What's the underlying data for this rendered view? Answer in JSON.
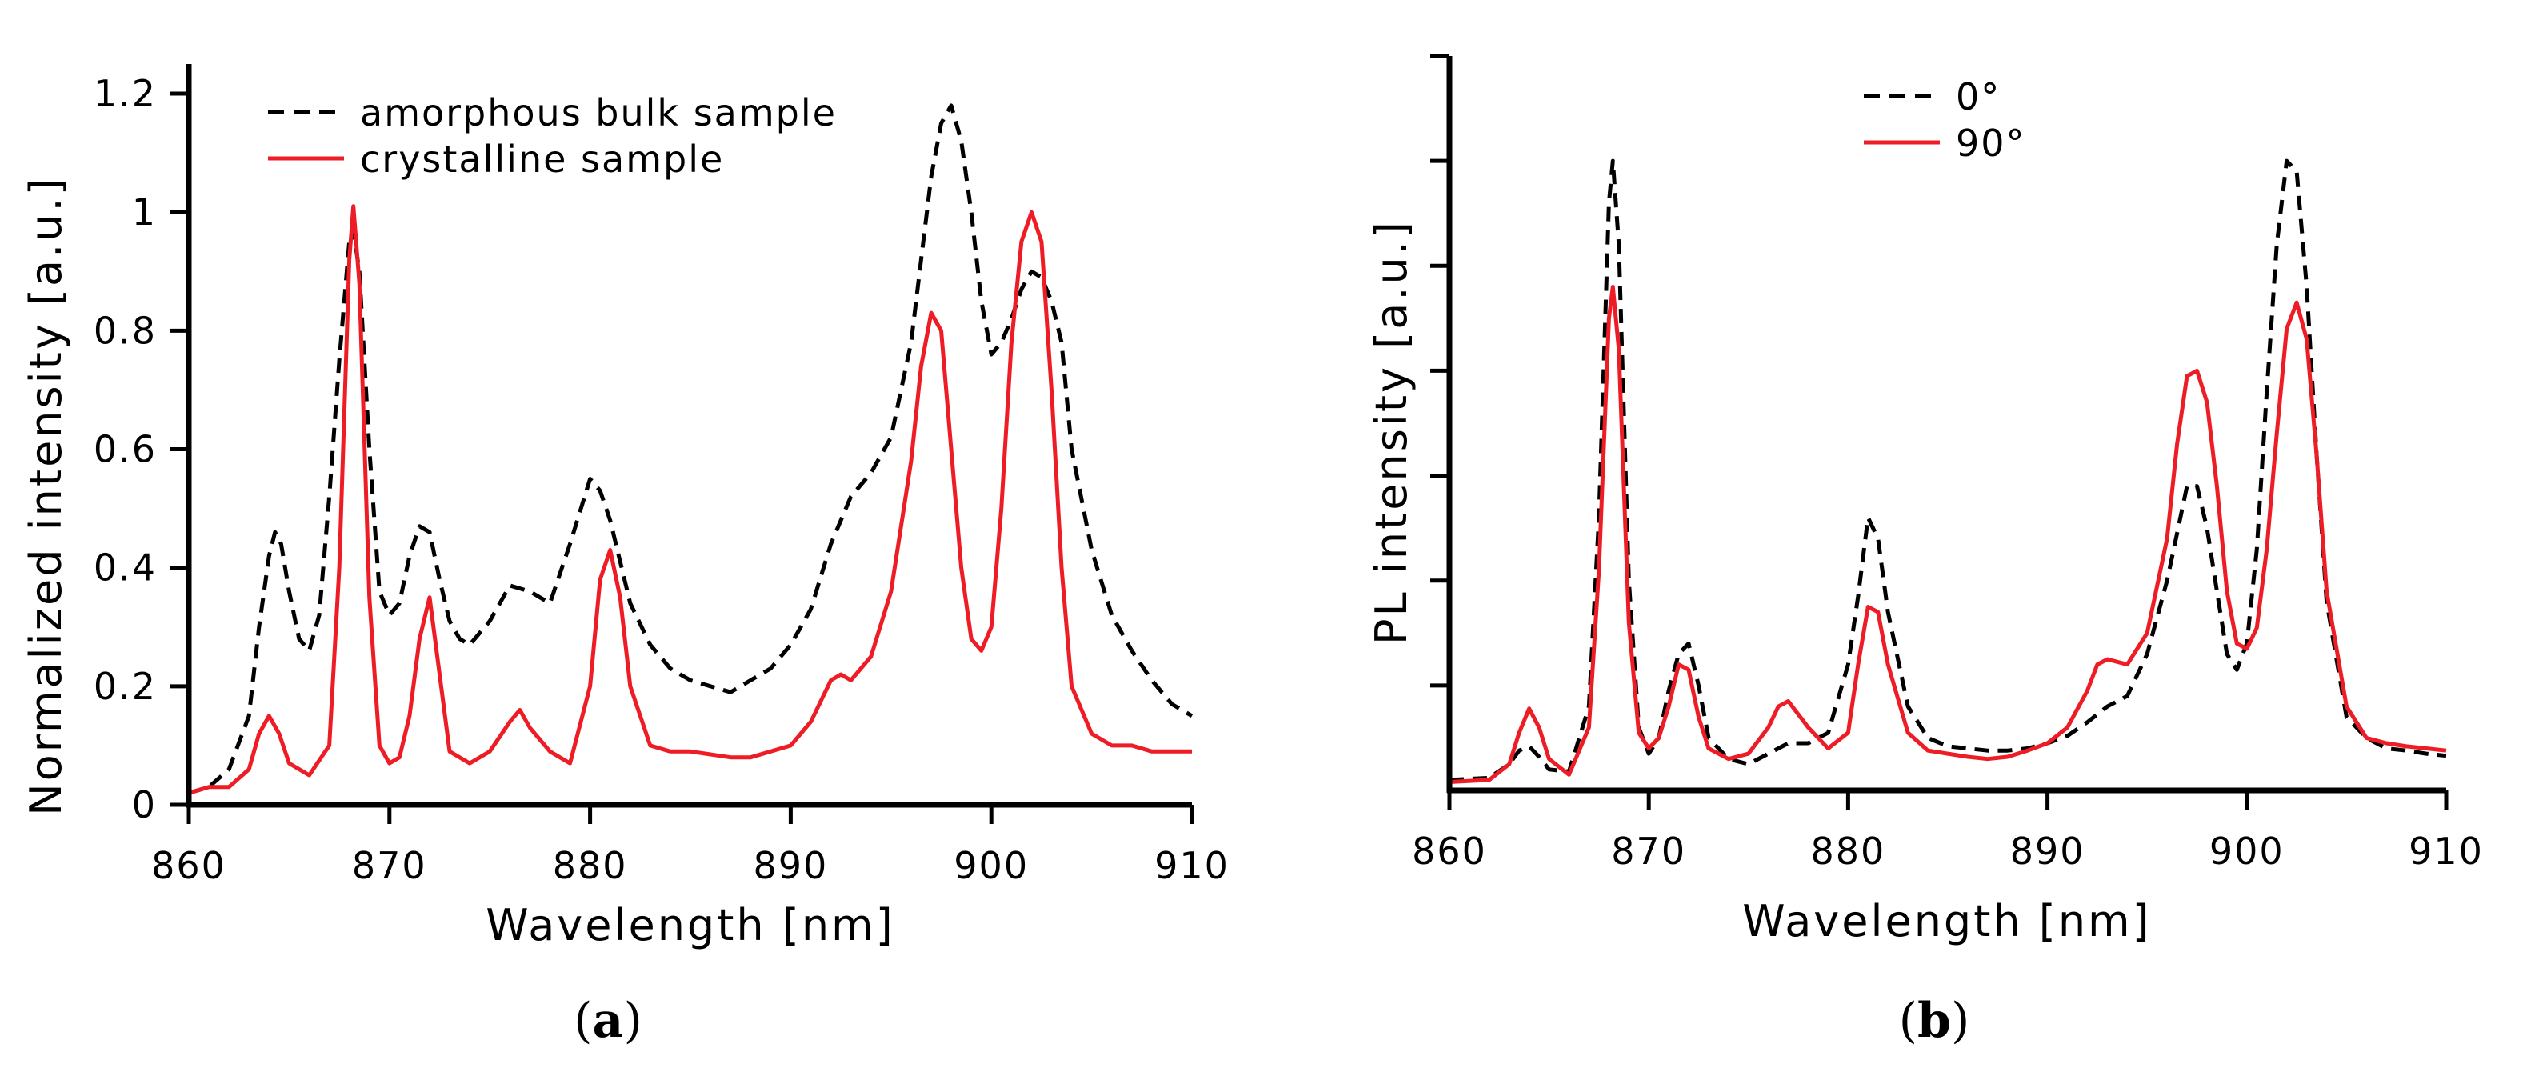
{
  "chart_data": [
    {
      "type": "line",
      "panel_label": "a",
      "xlabel": "Wavelength [nm]",
      "ylabel": "Normalized intensity [a.u.]",
      "xlim": [
        860,
        910
      ],
      "ylim": [
        0,
        1.25
      ],
      "x_ticks": [
        860,
        870,
        880,
        890,
        900,
        910
      ],
      "y_ticks": [
        0,
        0.2,
        0.4,
        0.6,
        0.8,
        1.0,
        1.2
      ],
      "y_tick_labels": [
        "0",
        "0.2",
        "0.4",
        "0.6",
        "0.8",
        "1",
        "1.2"
      ],
      "legend_position": "top-left",
      "series": [
        {
          "name": "amorphous bulk sample",
          "color": "#000000",
          "dash": "dashed",
          "x": [
            860,
            861,
            862,
            863,
            863.5,
            864,
            864.3,
            864.6,
            865,
            865.5,
            866,
            866.5,
            867,
            867.5,
            868,
            868.2,
            868.5,
            869,
            869.5,
            870,
            870.5,
            871,
            871.5,
            872,
            872.5,
            873,
            873.5,
            874,
            875,
            876,
            877,
            878,
            879,
            880,
            880.5,
            881,
            882,
            883,
            884,
            885,
            886,
            887,
            888,
            889,
            890,
            891,
            892,
            893,
            894,
            895,
            896,
            896.5,
            897,
            897.5,
            898,
            898.5,
            899,
            899.5,
            900,
            900.5,
            901,
            901.5,
            902,
            902.5,
            903,
            903.5,
            904,
            905,
            906,
            907,
            908,
            909,
            910
          ],
          "y": [
            0.02,
            0.03,
            0.06,
            0.15,
            0.3,
            0.42,
            0.46,
            0.44,
            0.36,
            0.28,
            0.26,
            0.32,
            0.52,
            0.75,
            0.95,
            0.97,
            0.9,
            0.6,
            0.36,
            0.32,
            0.34,
            0.42,
            0.47,
            0.46,
            0.38,
            0.31,
            0.28,
            0.27,
            0.31,
            0.37,
            0.36,
            0.34,
            0.44,
            0.55,
            0.53,
            0.48,
            0.34,
            0.27,
            0.23,
            0.21,
            0.2,
            0.19,
            0.21,
            0.23,
            0.27,
            0.33,
            0.44,
            0.52,
            0.56,
            0.62,
            0.78,
            0.92,
            1.06,
            1.15,
            1.18,
            1.12,
            1.0,
            0.85,
            0.76,
            0.78,
            0.82,
            0.87,
            0.9,
            0.89,
            0.85,
            0.78,
            0.6,
            0.43,
            0.32,
            0.26,
            0.21,
            0.17,
            0.15
          ]
        },
        {
          "name": "crystalline sample",
          "color": "#ee1c25",
          "dash": "solid",
          "x": [
            860,
            861,
            862,
            863,
            863.5,
            864,
            864.5,
            865,
            866,
            867,
            867.5,
            868,
            868.2,
            868.5,
            869,
            869.5,
            870,
            870.5,
            871,
            871.5,
            872,
            872.5,
            873,
            874,
            875,
            876,
            876.5,
            877,
            878,
            879,
            880,
            880.5,
            881,
            881.5,
            882,
            883,
            884,
            885,
            886,
            887,
            888,
            889,
            890,
            891,
            892,
            892.5,
            893,
            894,
            895,
            896,
            896.5,
            897,
            897.5,
            898,
            898.5,
            899,
            899.5,
            900,
            900.5,
            901,
            901.5,
            902,
            902.5,
            903,
            903.5,
            904,
            905,
            906,
            907,
            908,
            909,
            910
          ],
          "y": [
            0.02,
            0.03,
            0.03,
            0.06,
            0.12,
            0.15,
            0.12,
            0.07,
            0.05,
            0.1,
            0.4,
            0.92,
            1.01,
            0.88,
            0.35,
            0.1,
            0.07,
            0.08,
            0.15,
            0.28,
            0.35,
            0.22,
            0.09,
            0.07,
            0.09,
            0.14,
            0.16,
            0.13,
            0.09,
            0.07,
            0.2,
            0.38,
            0.43,
            0.35,
            0.2,
            0.1,
            0.09,
            0.09,
            0.085,
            0.08,
            0.08,
            0.09,
            0.1,
            0.14,
            0.21,
            0.22,
            0.21,
            0.25,
            0.36,
            0.58,
            0.74,
            0.83,
            0.8,
            0.6,
            0.4,
            0.28,
            0.26,
            0.3,
            0.5,
            0.78,
            0.95,
            1.0,
            0.95,
            0.7,
            0.4,
            0.2,
            0.12,
            0.1,
            0.1,
            0.09,
            0.09,
            0.09
          ]
        }
      ]
    },
    {
      "type": "line",
      "panel_label": "b",
      "xlabel": "Wavelength [nm]",
      "ylabel": "PL intensity [a.u.]",
      "xlim": [
        860,
        910
      ],
      "ylim": [
        0,
        7
      ],
      "x_ticks": [
        860,
        870,
        880,
        890,
        900,
        910
      ],
      "y_tick_count": 7,
      "legend_position": "top-center",
      "series": [
        {
          "name": "0°",
          "color": "#000000",
          "dash": "dashed",
          "x": [
            860,
            862,
            863,
            863.5,
            864,
            864.5,
            865,
            866,
            867,
            867.5,
            868,
            868.2,
            868.5,
            869,
            869.5,
            870,
            870.5,
            871,
            871.5,
            872,
            872.5,
            873,
            874,
            875,
            876,
            877,
            878,
            879,
            880,
            880.5,
            881,
            881.5,
            882,
            883,
            884,
            885,
            886,
            887,
            888,
            889,
            890,
            891,
            892,
            893,
            894,
            895,
            896,
            896.5,
            897,
            897.5,
            898,
            898.5,
            899,
            899.5,
            900,
            900.5,
            901,
            901.5,
            902,
            902.5,
            903,
            903.5,
            904,
            905,
            906,
            907,
            908,
            909,
            910
          ],
          "y": [
            0.1,
            0.12,
            0.25,
            0.38,
            0.42,
            0.32,
            0.2,
            0.18,
            0.8,
            2.6,
            5.6,
            6.0,
            5.2,
            2.0,
            0.6,
            0.35,
            0.5,
            0.95,
            1.3,
            1.4,
            1.0,
            0.5,
            0.3,
            0.25,
            0.35,
            0.45,
            0.45,
            0.55,
            1.2,
            1.85,
            2.6,
            2.4,
            1.7,
            0.8,
            0.5,
            0.42,
            0.4,
            0.38,
            0.38,
            0.4,
            0.45,
            0.52,
            0.65,
            0.8,
            0.9,
            1.3,
            2.0,
            2.45,
            2.9,
            2.9,
            2.5,
            1.9,
            1.3,
            1.15,
            1.4,
            2.3,
            3.8,
            5.2,
            6.0,
            5.9,
            4.8,
            3.2,
            1.8,
            0.7,
            0.5,
            0.4,
            0.38,
            0.35,
            0.33
          ]
        },
        {
          "name": "90°",
          "color": "#ee1c25",
          "dash": "solid",
          "x": [
            860,
            862,
            863,
            863.5,
            864,
            864.5,
            865,
            866,
            867,
            867.5,
            868,
            868.2,
            868.5,
            869,
            869.5,
            870,
            870.5,
            871,
            871.5,
            872,
            872.5,
            873,
            874,
            875,
            876,
            876.5,
            877,
            878,
            879,
            880,
            880.5,
            881,
            881.5,
            882,
            883,
            884,
            885,
            886,
            887,
            888,
            889,
            890,
            891,
            892,
            892.5,
            893,
            894,
            895,
            896,
            896.5,
            897,
            897.5,
            898,
            898.5,
            899,
            899.5,
            900,
            900.5,
            901,
            901.5,
            902,
            902.5,
            903,
            903.5,
            904,
            905,
            906,
            907,
            908,
            909,
            910
          ],
          "y": [
            0.08,
            0.1,
            0.25,
            0.55,
            0.78,
            0.6,
            0.3,
            0.15,
            0.6,
            2.1,
            4.5,
            4.8,
            4.2,
            1.6,
            0.55,
            0.4,
            0.5,
            0.8,
            1.2,
            1.15,
            0.7,
            0.4,
            0.3,
            0.35,
            0.6,
            0.8,
            0.85,
            0.6,
            0.4,
            0.55,
            1.2,
            1.75,
            1.7,
            1.2,
            0.55,
            0.38,
            0.35,
            0.32,
            0.3,
            0.32,
            0.38,
            0.45,
            0.6,
            0.95,
            1.2,
            1.25,
            1.2,
            1.5,
            2.4,
            3.3,
            3.95,
            4.0,
            3.7,
            2.9,
            1.9,
            1.4,
            1.35,
            1.55,
            2.3,
            3.4,
            4.4,
            4.65,
            4.3,
            3.2,
            1.9,
            0.8,
            0.5,
            0.45,
            0.42,
            0.4,
            0.38
          ]
        }
      ]
    }
  ]
}
